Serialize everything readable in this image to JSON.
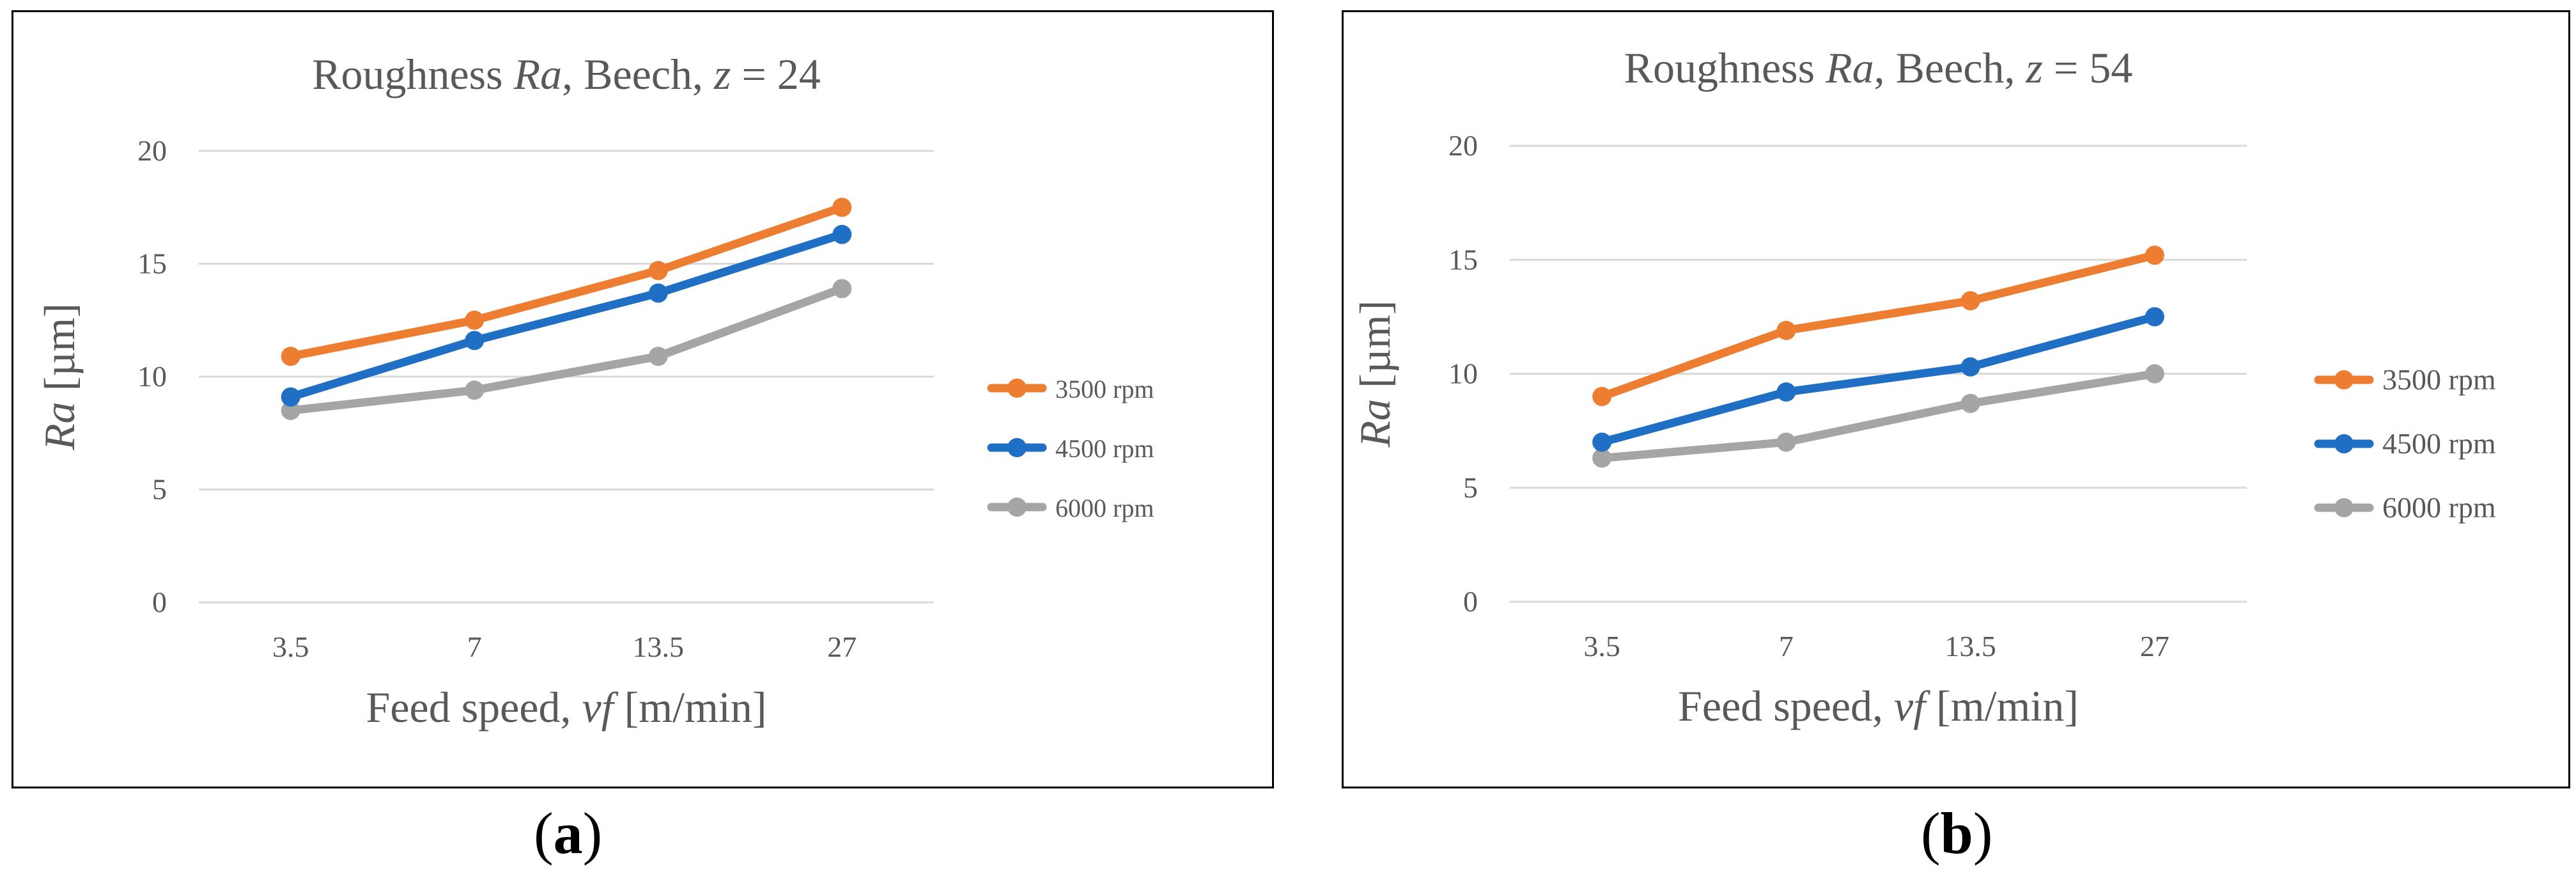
{
  "chart_data": [
    {
      "type": "line",
      "panel_label": "a",
      "title": {
        "prefix": "Roughness ",
        "italic1": "Ra",
        "middle": ", Beech, ",
        "italic2": "z",
        "suffix": " = 24"
      },
      "xlabel": {
        "prefix": "Feed speed, ",
        "italic": "vf",
        "suffix": " [m/min]"
      },
      "ylabel": {
        "italic": "Ra",
        "suffix": " [µm]"
      },
      "categories": [
        "3.5",
        "7",
        "13.5",
        "27"
      ],
      "yticks": [
        "0",
        "5",
        "10",
        "15",
        "20"
      ],
      "ylim": [
        0,
        20
      ],
      "grid": true,
      "legend_position": "right",
      "series": [
        {
          "name": "3500 rpm",
          "color": "#ED7D31",
          "values": [
            10.9,
            12.5,
            14.7,
            17.5
          ]
        },
        {
          "name": "4500 rpm",
          "color": "#1F6FC5",
          "values": [
            9.1,
            11.6,
            13.7,
            16.3
          ]
        },
        {
          "name": "6000 rpm",
          "color": "#A5A5A5",
          "values": [
            8.5,
            9.4,
            10.9,
            13.9
          ]
        }
      ]
    },
    {
      "type": "line",
      "panel_label": "b",
      "title": {
        "prefix": "Roughness ",
        "italic1": "Ra",
        "middle": ", Beech, ",
        "italic2": "z",
        "suffix": " = 54"
      },
      "xlabel": {
        "prefix": "Feed speed, ",
        "italic": "vf",
        "suffix": " [m/min]"
      },
      "ylabel": {
        "italic": "Ra",
        "suffix": " [µm]"
      },
      "categories": [
        "3.5",
        "7",
        "13.5",
        "27"
      ],
      "yticks": [
        "0",
        "5",
        "10",
        "15",
        "20"
      ],
      "ylim": [
        0,
        20
      ],
      "grid": true,
      "legend_position": "right",
      "series": [
        {
          "name": "3500 rpm",
          "color": "#ED7D31",
          "values": [
            9.0,
            11.9,
            13.2,
            15.2
          ]
        },
        {
          "name": "4500 rpm",
          "color": "#1F6FC5",
          "values": [
            7.0,
            9.2,
            10.3,
            12.5
          ]
        },
        {
          "name": "6000 rpm",
          "color": "#A5A5A5",
          "values": [
            6.3,
            7.0,
            8.7,
            10.0
          ]
        }
      ]
    }
  ]
}
